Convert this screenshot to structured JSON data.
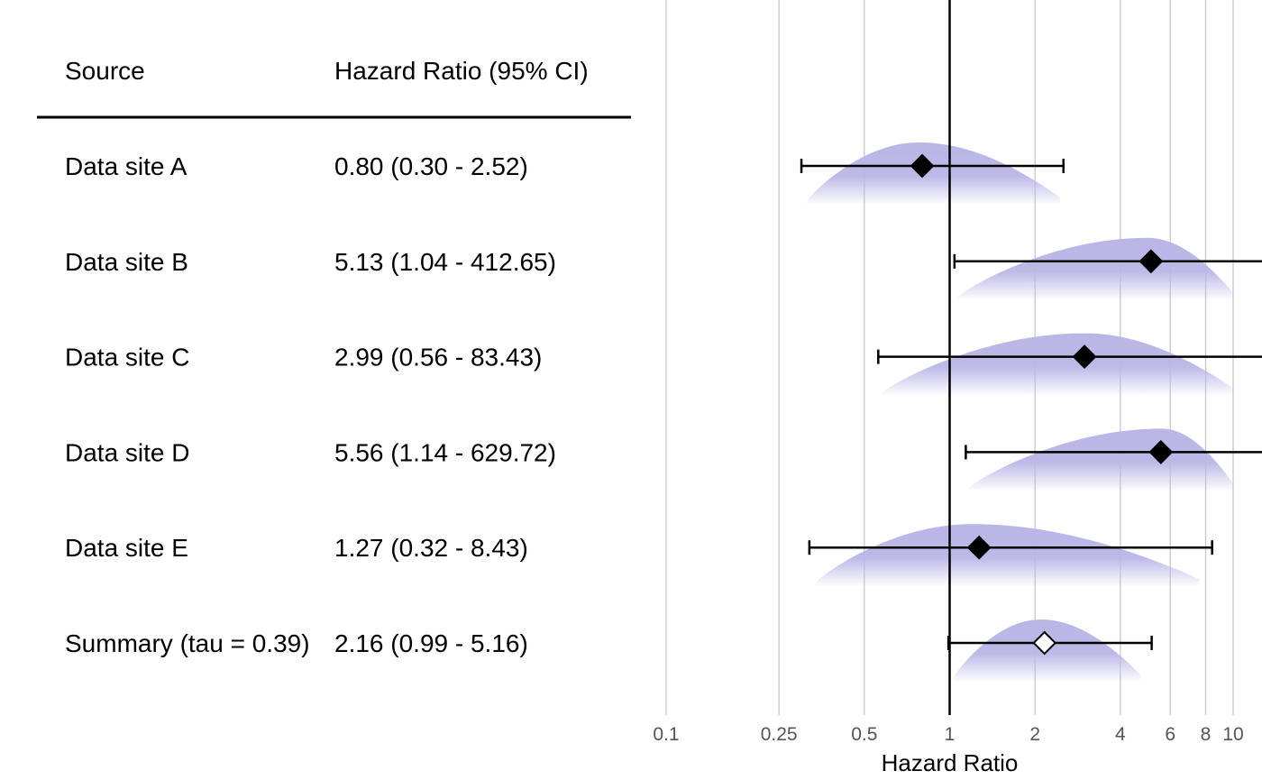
{
  "table": {
    "headers": {
      "source": "Source",
      "estimate": "Hazard Ratio (95% CI)"
    }
  },
  "chart_data": {
    "type": "forest",
    "x_scale": "log",
    "xlabel": "Hazard Ratio",
    "xlim": [
      0.1,
      12
    ],
    "reference_line": 1,
    "ticks": [
      {
        "value": 0.1,
        "label": "0.1"
      },
      {
        "value": 0.25,
        "label": "0.25"
      },
      {
        "value": 0.5,
        "label": "0.5"
      },
      {
        "value": 1,
        "label": "1"
      },
      {
        "value": 2,
        "label": "2"
      },
      {
        "value": 4,
        "label": "4"
      },
      {
        "value": 6,
        "label": "6"
      },
      {
        "value": 8,
        "label": "8"
      },
      {
        "value": 10,
        "label": "10"
      }
    ],
    "grid": true,
    "density_color": "#b9b6e6",
    "rows": [
      {
        "source": "Data site A",
        "estimate_text": "0.80 (0.30 - 2.52)",
        "hr": 0.8,
        "lower": 0.3,
        "upper": 2.52,
        "summary": false,
        "density": {
          "lo": 0.31,
          "hi": 2.45,
          "peak": 0.78,
          "height": 0.8
        }
      },
      {
        "source": "Data site B",
        "estimate_text": "5.13 (1.04 - 412.65)",
        "hr": 5.13,
        "lower": 1.04,
        "upper": 412.65,
        "summary": false,
        "density": {
          "lo": 1.05,
          "hi": 10,
          "peak": 5.0,
          "height": 0.8
        }
      },
      {
        "source": "Data site C",
        "estimate_text": "2.99 (0.56 - 83.43)",
        "hr": 2.99,
        "lower": 0.56,
        "upper": 83.43,
        "summary": false,
        "density": {
          "lo": 0.57,
          "hi": 10,
          "peak": 3.0,
          "height": 0.8
        }
      },
      {
        "source": "Data site D",
        "estimate_text": "5.56 (1.14 - 629.72)",
        "hr": 5.56,
        "lower": 1.14,
        "upper": 629.72,
        "summary": false,
        "density": {
          "lo": 1.15,
          "hi": 10,
          "peak": 5.6,
          "height": 0.8
        }
      },
      {
        "source": "Data site E",
        "estimate_text": "1.27 (0.32 - 8.43)",
        "hr": 1.27,
        "lower": 0.32,
        "upper": 8.43,
        "summary": false,
        "density": {
          "lo": 0.33,
          "hi": 7.6,
          "peak": 1.2,
          "height": 0.8
        }
      },
      {
        "source": "Summary (tau = 0.39)",
        "estimate_text": "2.16 (0.99 - 5.16)",
        "hr": 2.16,
        "lower": 0.99,
        "upper": 5.16,
        "summary": true,
        "density": {
          "lo": 1.02,
          "hi": 4.7,
          "peak": 2.1,
          "height": 0.8
        }
      }
    ]
  }
}
